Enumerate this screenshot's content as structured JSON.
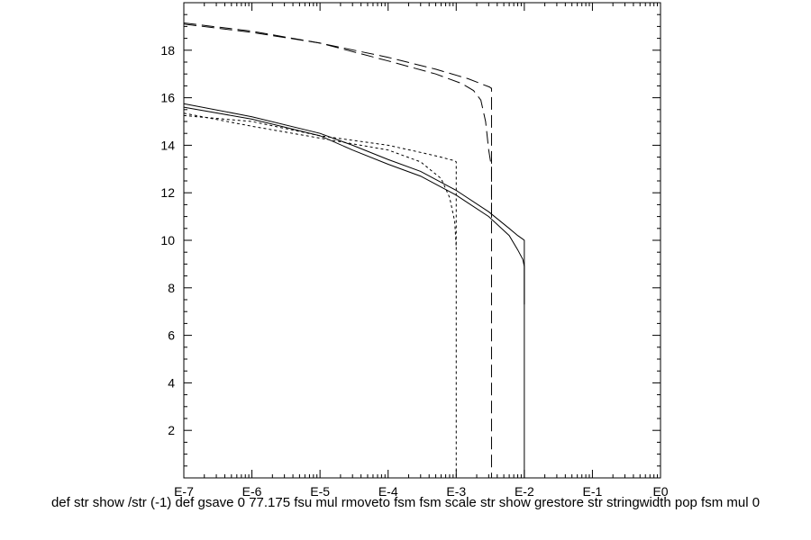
{
  "chart_data": {
    "type": "line",
    "x_scale": "log",
    "xlim": [
      1e-07,
      1
    ],
    "ylim": [
      0,
      20
    ],
    "x_ticks": [
      {
        "value": 1e-07,
        "label": "E-7"
      },
      {
        "value": 1e-06,
        "label": "E-6"
      },
      {
        "value": 1e-05,
        "label": "E-5"
      },
      {
        "value": 0.0001,
        "label": "E-4"
      },
      {
        "value": 0.001,
        "label": "E-3"
      },
      {
        "value": 0.01,
        "label": "E-2"
      },
      {
        "value": 0.1,
        "label": "E-1"
      },
      {
        "value": 1,
        "label": "E0"
      }
    ],
    "y_ticks": [
      {
        "value": 2,
        "label": "2"
      },
      {
        "value": 4,
        "label": "4"
      },
      {
        "value": 6,
        "label": "6"
      },
      {
        "value": 8,
        "label": "8"
      },
      {
        "value": 10,
        "label": "10"
      },
      {
        "value": 12,
        "label": "12"
      },
      {
        "value": 14,
        "label": "14"
      },
      {
        "value": 16,
        "label": "16"
      },
      {
        "value": 18,
        "label": "18"
      }
    ],
    "grid": false,
    "series": [
      {
        "style": "solid",
        "color": "#000000",
        "x": [
          1e-07,
          1e-06,
          1e-05,
          3e-05,
          0.0001,
          0.0003,
          0.001,
          0.003,
          0.006,
          0.008,
          0.0095,
          0.01,
          0.01
        ],
        "y": [
          15.75,
          15.2,
          14.5,
          14.0,
          13.4,
          12.9,
          12.1,
          11.2,
          10.5,
          10.2,
          10.05,
          10.0,
          7.3
        ]
      },
      {
        "style": "solid",
        "color": "#000000",
        "x": [
          1e-07,
          1e-06,
          1e-05,
          3e-05,
          0.0001,
          0.0003,
          0.001,
          0.003,
          0.006,
          0.008,
          0.0095,
          0.01,
          0.01
        ],
        "y": [
          15.6,
          15.1,
          14.4,
          13.8,
          13.2,
          12.7,
          11.9,
          11.0,
          10.2,
          9.6,
          9.2,
          8.9,
          0
        ]
      },
      {
        "style": "short-dash",
        "color": "#000000",
        "x": [
          1e-07,
          1e-06,
          1e-05,
          0.0001,
          0.0003,
          0.0006,
          0.0008,
          0.00095,
          0.001,
          0.001
        ],
        "y": [
          15.25,
          15.0,
          14.4,
          14.0,
          13.7,
          13.5,
          13.4,
          13.35,
          13.3,
          0
        ]
      },
      {
        "style": "short-dash",
        "color": "#000000",
        "x": [
          1e-07,
          1e-06,
          1e-05,
          0.0001,
          0.0003,
          0.0006,
          0.0008,
          0.00095,
          0.001,
          0.001
        ],
        "y": [
          15.35,
          14.8,
          14.3,
          13.8,
          13.3,
          12.6,
          11.8,
          10.8,
          9.7,
          9.7
        ]
      },
      {
        "style": "long-dash",
        "color": "#000000",
        "x": [
          1e-07,
          1e-06,
          1e-05,
          0.0001,
          0.0005,
          0.0015,
          0.0025,
          0.0031,
          0.00325,
          0.0033,
          0.0033
        ],
        "y": [
          19.15,
          18.8,
          18.3,
          17.7,
          17.2,
          16.8,
          16.55,
          16.45,
          16.4,
          16.4,
          10.8
        ]
      },
      {
        "style": "long-dash",
        "color": "#000000",
        "x": [
          1e-07,
          1e-06,
          1e-05,
          0.0001,
          0.0005,
          0.0012,
          0.0018,
          0.0023,
          0.0027,
          0.003,
          0.0032,
          0.0033,
          0.0033
        ],
        "y": [
          19.1,
          18.75,
          18.3,
          17.55,
          17.0,
          16.6,
          16.3,
          15.9,
          15.0,
          13.8,
          13.3,
          13.2,
          0
        ]
      }
    ]
  },
  "footer_text": "def str show /str (-1) def gsave 0 77.175 fsu mul rmoveto fsm fsm scale str show grestore str stringwidth pop fsm mul 0"
}
